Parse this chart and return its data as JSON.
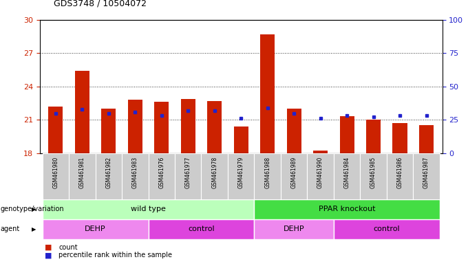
{
  "title": "GDS3748 / 10504072",
  "samples": [
    "GSM461980",
    "GSM461981",
    "GSM461982",
    "GSM461983",
    "GSM461976",
    "GSM461977",
    "GSM461978",
    "GSM461979",
    "GSM461988",
    "GSM461989",
    "GSM461990",
    "GSM461984",
    "GSM461985",
    "GSM461986",
    "GSM461987"
  ],
  "counts": [
    22.2,
    25.4,
    22.0,
    22.8,
    22.6,
    22.9,
    22.7,
    20.4,
    28.7,
    22.0,
    18.2,
    21.3,
    21.0,
    20.7,
    20.5
  ],
  "percentiles": [
    30,
    33,
    30,
    31,
    28,
    32,
    32,
    26,
    34,
    30,
    26,
    28,
    27,
    28,
    28
  ],
  "ylim_left": [
    18,
    30
  ],
  "ylim_right": [
    0,
    100
  ],
  "yticks_left": [
    18,
    21,
    24,
    27,
    30
  ],
  "yticks_right": [
    0,
    25,
    50,
    75,
    100
  ],
  "bar_color": "#cc2200",
  "dot_color": "#2222cc",
  "bar_width": 0.55,
  "genotype_groups": [
    {
      "label": "wild type",
      "start": 0,
      "end": 8,
      "color": "#bbffbb"
    },
    {
      "label": "PPAR knockout",
      "start": 8,
      "end": 15,
      "color": "#44dd44"
    }
  ],
  "agent_groups": [
    {
      "label": "DEHP",
      "start": 0,
      "end": 4,
      "color": "#ee88ee"
    },
    {
      "label": "control",
      "start": 4,
      "end": 8,
      "color": "#dd44dd"
    },
    {
      "label": "DEHP",
      "start": 8,
      "end": 11,
      "color": "#ee88ee"
    },
    {
      "label": "control",
      "start": 11,
      "end": 15,
      "color": "#dd44dd"
    }
  ],
  "legend_count_color": "#cc2200",
  "legend_pct_color": "#2222cc",
  "axis_color_left": "#cc2200",
  "axis_color_right": "#2222cc",
  "tick_bg_color": "#cccccc",
  "grid_color": "#333333"
}
